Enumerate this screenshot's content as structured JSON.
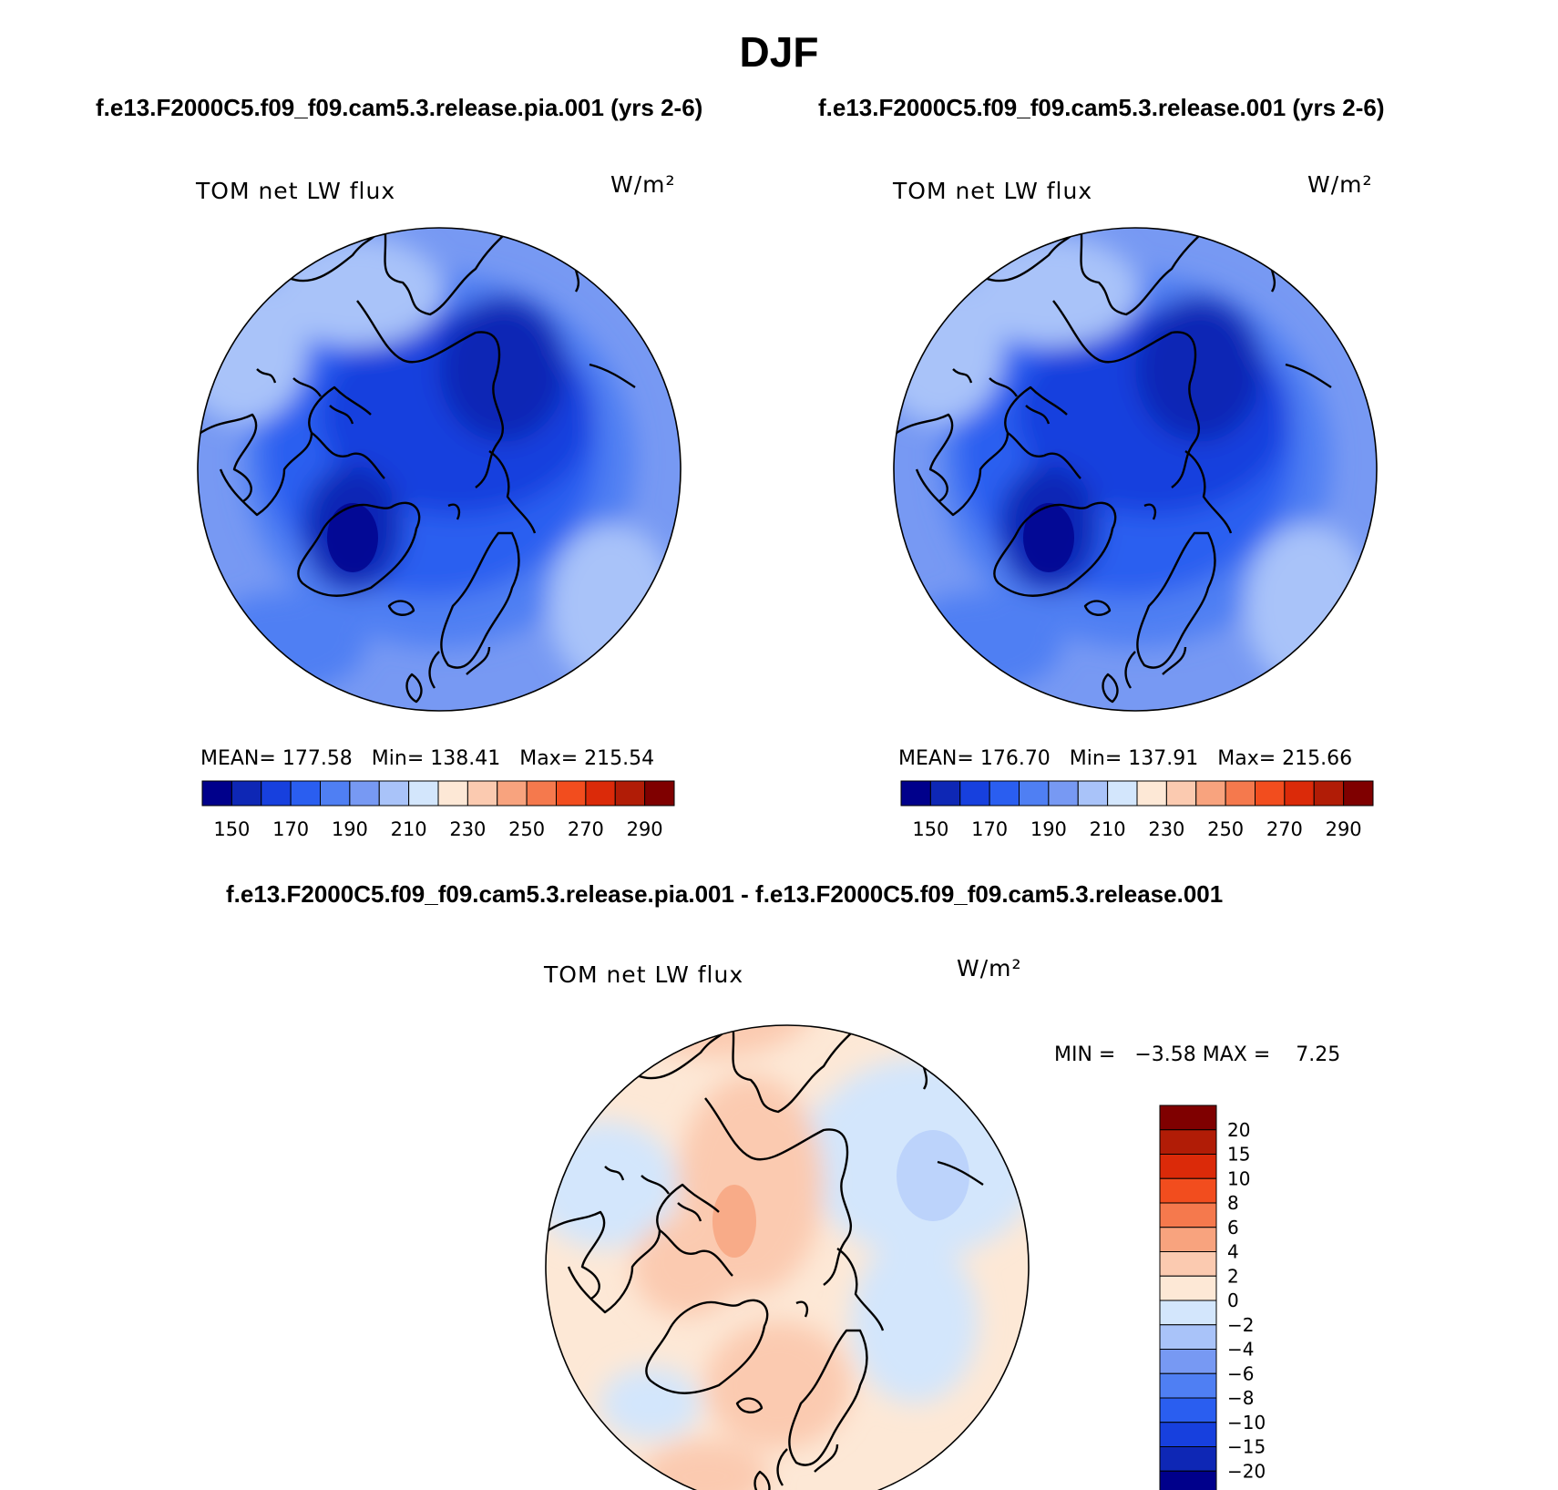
{
  "figure": {
    "title": "DJF",
    "case_a_title": "f.e13.F2000C5.f09_f09.cam5.3.release.pia.001 (yrs 2-6)",
    "case_b_title": "f.e13.F2000C5.f09_f09.cam5.3.release.001 (yrs 2-6)",
    "diff_title": "f.e13.F2000C5.f09_f09.cam5.3.release.pia.001 - f.e13.F2000C5.f09_f09.cam5.3.release.001"
  },
  "chart_data": [
    {
      "type": "heatmap",
      "projection": "polar stereographic (north)",
      "variable_label": "TOM net LW flux",
      "units": "W/m²",
      "stats": {
        "mean_label": "MEAN=",
        "mean": "177.58",
        "min_label": "Min=",
        "min": "138.41",
        "max_label": "Max=",
        "max": "215.54"
      },
      "colorbar": {
        "orientation": "horizontal",
        "tick_labels": [
          "150",
          "170",
          "190",
          "210",
          "230",
          "250",
          "270",
          "290"
        ],
        "colors": [
          "#00008b",
          "#0e27b5",
          "#1740de",
          "#2a5ef0",
          "#4f7ff3",
          "#7799f3",
          "#a9c3f9",
          "#d3e6fc",
          "#fde8d6",
          "#fbcab0",
          "#f8a37e",
          "#f5794d",
          "#f24d1e",
          "#db2a09",
          "#b11c06",
          "#7f0000"
        ]
      }
    },
    {
      "type": "heatmap",
      "projection": "polar stereographic (north)",
      "variable_label": "TOM net LW flux",
      "units": "W/m²",
      "stats": {
        "mean_label": "MEAN=",
        "mean": "176.70",
        "min_label": "Min=",
        "min": "137.91",
        "max_label": "Max=",
        "max": "215.66"
      },
      "colorbar": {
        "orientation": "horizontal",
        "tick_labels": [
          "150",
          "170",
          "190",
          "210",
          "230",
          "250",
          "270",
          "290"
        ],
        "colors": [
          "#00008b",
          "#0e27b5",
          "#1740de",
          "#2a5ef0",
          "#4f7ff3",
          "#7799f3",
          "#a9c3f9",
          "#d3e6fc",
          "#fde8d6",
          "#fbcab0",
          "#f8a37e",
          "#f5794d",
          "#f24d1e",
          "#db2a09",
          "#b11c06",
          "#7f0000"
        ]
      }
    },
    {
      "type": "heatmap",
      "projection": "polar stereographic (north)",
      "variable_label": "TOM net LW flux",
      "units": "W/m²",
      "stats": {
        "min_label": "MIN =",
        "min": "−3.58",
        "max_label": "MAX =",
        "max": "7.25"
      },
      "colorbar": {
        "orientation": "vertical",
        "tick_labels": [
          "20",
          "15",
          "10",
          "8",
          "6",
          "4",
          "2",
          "0",
          "−2",
          "−4",
          "−6",
          "−8",
          "−10",
          "−15",
          "−20"
        ],
        "colors": [
          "#7f0000",
          "#b11c06",
          "#db2a09",
          "#f24d1e",
          "#f5794d",
          "#f8a37e",
          "#fbcab0",
          "#fde8d6",
          "#d3e6fc",
          "#a9c3f9",
          "#7799f3",
          "#4f7ff3",
          "#2a5ef0",
          "#1740de",
          "#0e27b5",
          "#00008b"
        ]
      }
    }
  ]
}
